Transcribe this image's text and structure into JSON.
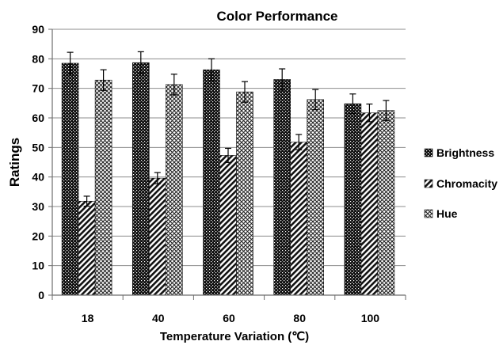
{
  "chart_data": {
    "type": "bar",
    "title": "Color Performance",
    "xlabel": "Temperature Variation (℃)",
    "ylabel": "Ratings",
    "categories": [
      "18",
      "40",
      "60",
      "80",
      "100"
    ],
    "ylim": [
      0,
      90
    ],
    "yticks": [
      0,
      10,
      20,
      30,
      40,
      50,
      60,
      70,
      80,
      90
    ],
    "grid": true,
    "legend_position": "right",
    "series": [
      {
        "name": "Brightness",
        "pattern": "dots-dark",
        "color": "#111111",
        "values": [
          78.5,
          78.7,
          76.3,
          73.0,
          64.8
        ],
        "errors": [
          3.7,
          3.7,
          3.7,
          3.6,
          3.3
        ]
      },
      {
        "name": "Chromacity",
        "pattern": "diagonal-stripes",
        "color": "#333333",
        "values": [
          31.8,
          39.6,
          47.3,
          51.8,
          61.7
        ],
        "errors": [
          1.7,
          1.9,
          2.4,
          2.6,
          3.0
        ]
      },
      {
        "name": "Hue",
        "pattern": "crosshatch",
        "color": "#555555",
        "values": [
          72.8,
          71.3,
          68.8,
          66.2,
          62.5
        ],
        "errors": [
          3.5,
          3.5,
          3.5,
          3.4,
          3.4
        ]
      }
    ]
  }
}
